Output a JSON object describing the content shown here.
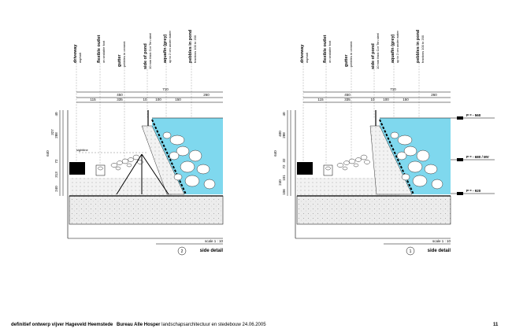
{
  "labels": [
    {
      "title": "driveway",
      "sub": "asphalt"
    },
    {
      "title": "flexible outlet",
      "sub": "on sealable foot"
    },
    {
      "title": "gutter",
      "sub": "pebbles in cement"
    },
    {
      "title": "side of pond",
      "sub": "10 mm thick Cor Ten steel"
    },
    {
      "title": "aquafin (grey)",
      "sub": "up to 2 cm under water"
    },
    {
      "title": "pebbles in pond",
      "sub": "fractions 100 to 200"
    }
  ],
  "dims_top": {
    "total": "710",
    "left": "450",
    "right": "260",
    "parts": [
      "115",
      "335",
      "10",
      "100",
      "150"
    ]
  },
  "detail_left": {
    "height_total": "640",
    "heights": [
      "313",
      "240",
      "72",
      "288",
      "327",
      "40"
    ],
    "sightline": "sightline",
    "scale": "scale 1 : 10",
    "title": "side detail",
    "number": "2"
  },
  "detail_right": {
    "height_total": "640",
    "heights": [
      "106",
      "240",
      "101",
      "72",
      "32",
      "288",
      "400",
      "40"
    ],
    "levels": [
      "P = - 560",
      "P = - 680 / MV",
      "P = - 920"
    ],
    "scale": "scale 1 : 10",
    "title": "side detail",
    "number": "1"
  },
  "footer": {
    "left": "definitief ontwerp vijver Hageveld Heemstede",
    "firm_bold": "Bureau Alle Hosper",
    "firm_rest": "landschapsarchitectuur en stedebouw  24.06.2005",
    "page": "11"
  },
  "colors": {
    "water": "#7fd8ee",
    "ground": "#e6e6e6",
    "steel": "#000000"
  }
}
